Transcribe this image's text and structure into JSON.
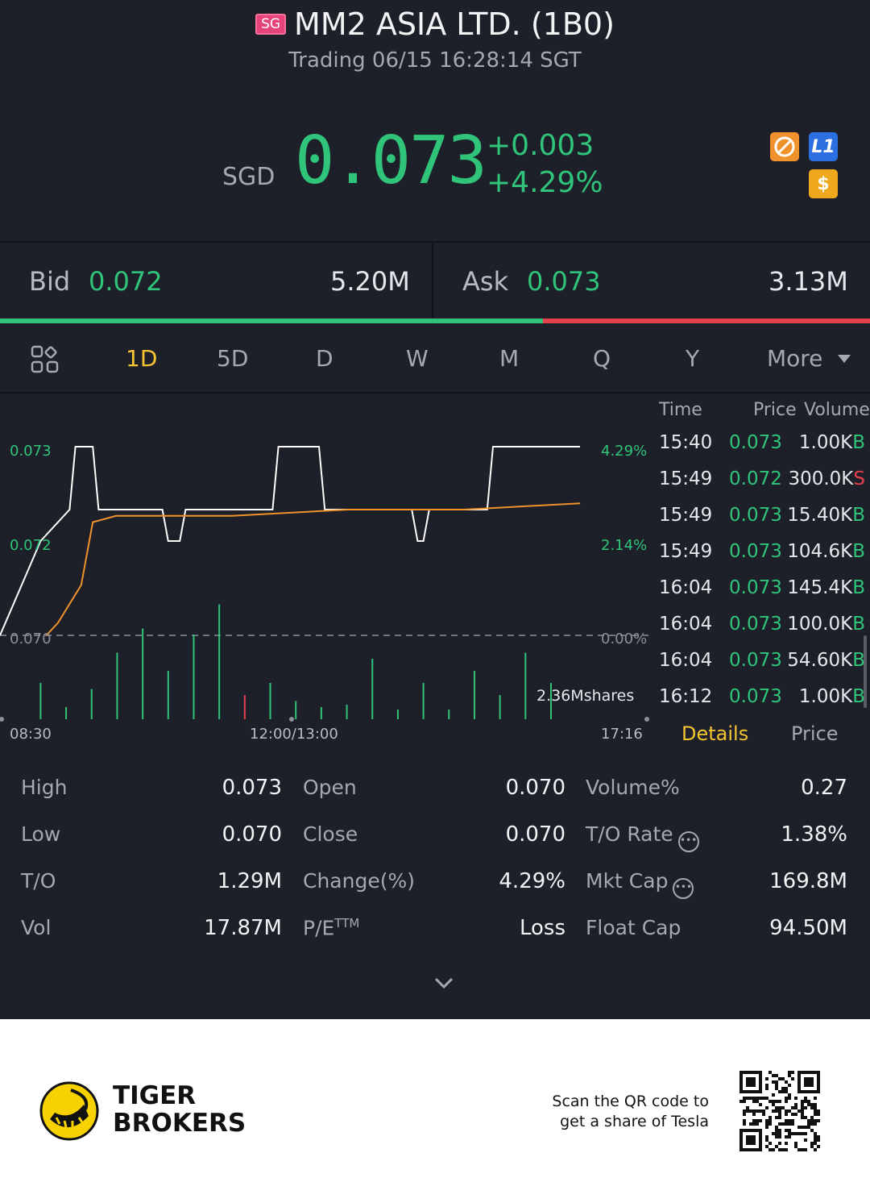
{
  "header": {
    "market_badge": "SG",
    "title": "MM2 ASIA LTD. (1B0)",
    "subtitle": "Trading 06/15 16:28:14 SGT"
  },
  "quote": {
    "currency": "SGD",
    "last_price": "0.073",
    "change": "+0.003",
    "change_pct": "+4.29%",
    "icons": [
      "no-short-icon",
      "level1-icon",
      "dollar-icon"
    ],
    "level_label": "L1",
    "dollar_label": "$"
  },
  "bid_ask": {
    "bid_label": "Bid",
    "bid_price": "0.072",
    "bid_volume": "5.20M",
    "ask_label": "Ask",
    "ask_price": "0.073",
    "ask_volume": "3.13M",
    "bid_share": 0.624
  },
  "tabs": {
    "items": [
      "1D",
      "5D",
      "D",
      "W",
      "M",
      "Q",
      "Y",
      "More"
    ],
    "active": "1D"
  },
  "chart": {
    "y_left": [
      "0.073",
      "0.072",
      "0.070"
    ],
    "y_right": [
      "4.29%",
      "2.14%",
      "0.00%"
    ],
    "volume_label": "2.36Mshares",
    "x_labels": [
      "08:30",
      "12:00/13:00",
      "17:16"
    ]
  },
  "chart_data": {
    "type": "line",
    "x_domain": [
      "08:30",
      "17:16"
    ],
    "ylim": [
      0.07,
      0.073
    ],
    "reference_close": 0.07,
    "series": [
      {
        "color": "#ffffff",
        "values": [
          [
            0,
            0.07
          ],
          [
            0.07,
            0.0715
          ],
          [
            0.12,
            0.072
          ],
          [
            0.13,
            0.073
          ],
          [
            0.16,
            0.073
          ],
          [
            0.17,
            0.072
          ],
          [
            0.28,
            0.072
          ],
          [
            0.29,
            0.0715
          ],
          [
            0.31,
            0.0715
          ],
          [
            0.32,
            0.072
          ],
          [
            0.47,
            0.072
          ],
          [
            0.48,
            0.073
          ],
          [
            0.55,
            0.073
          ],
          [
            0.56,
            0.072
          ],
          [
            0.71,
            0.072
          ],
          [
            0.72,
            0.0715
          ],
          [
            0.73,
            0.0715
          ],
          [
            0.74,
            0.072
          ],
          [
            0.84,
            0.072
          ],
          [
            0.85,
            0.073
          ],
          [
            1.0,
            0.073
          ]
        ]
      },
      {
        "color": "#f0922c",
        "values": [
          [
            0.08,
            0.07
          ],
          [
            0.1,
            0.0702
          ],
          [
            0.14,
            0.0708
          ],
          [
            0.16,
            0.0718
          ],
          [
            0.2,
            0.0719
          ],
          [
            0.4,
            0.0719
          ],
          [
            0.6,
            0.072
          ],
          [
            0.8,
            0.072
          ],
          [
            1.0,
            0.0721
          ]
        ]
      }
    ],
    "volume_bars": [
      0.3,
      0.1,
      0.25,
      0.55,
      0.75,
      0.4,
      0.7,
      0.95,
      0.2,
      0.3,
      0.15,
      0.1,
      0.12,
      0.5,
      0.08,
      0.3,
      0.08,
      0.4,
      0.2,
      0.55,
      0.3
    ]
  },
  "ticks": {
    "headers": [
      "Time",
      "Price",
      "Volume"
    ],
    "rows": [
      {
        "time": "15:40",
        "price": "0.073",
        "volume": "1.00K",
        "side": "B"
      },
      {
        "time": "15:49",
        "price": "0.072",
        "volume": "300.0K",
        "side": "S"
      },
      {
        "time": "15:49",
        "price": "0.073",
        "volume": "15.40K",
        "side": "B"
      },
      {
        "time": "15:49",
        "price": "0.073",
        "volume": "104.6K",
        "side": "B"
      },
      {
        "time": "16:04",
        "price": "0.073",
        "volume": "145.4K",
        "side": "B"
      },
      {
        "time": "16:04",
        "price": "0.073",
        "volume": "100.0K",
        "side": "B"
      },
      {
        "time": "16:04",
        "price": "0.073",
        "volume": "54.60K",
        "side": "B"
      },
      {
        "time": "16:12",
        "price": "0.073",
        "volume": "1.00K",
        "side": "B"
      }
    ],
    "details_label": "Details",
    "price_label": "Price"
  },
  "stats": {
    "col1": [
      {
        "label": "High",
        "value": "0.073"
      },
      {
        "label": "Low",
        "value": "0.070"
      },
      {
        "label": "T/O",
        "value": "1.29M"
      },
      {
        "label": "Vol",
        "value": "17.87M"
      }
    ],
    "col2": [
      {
        "label": "Open",
        "value": "0.070"
      },
      {
        "label": "Close",
        "value": "0.070"
      },
      {
        "label": "Change(%)",
        "value": "4.29%"
      },
      {
        "label": "P/E",
        "sup": "TTM",
        "value": "Loss"
      }
    ],
    "col3": [
      {
        "label": "Volume%",
        "value": "0.27"
      },
      {
        "label": "T/O Rate",
        "value": "1.38%"
      },
      {
        "label": "Mkt Cap",
        "value": "169.8M"
      },
      {
        "label": "Float Cap",
        "value": "94.50M"
      }
    ]
  },
  "footer": {
    "brand_line1": "TIGER",
    "brand_line2": "BROKERS",
    "qr_line1": "Scan the QR code to",
    "qr_line2": "get a share of Tesla"
  },
  "colors": {
    "up": "#2fc47a",
    "down": "#e4404d",
    "accent": "#f4c431",
    "background": "#1e2029"
  }
}
